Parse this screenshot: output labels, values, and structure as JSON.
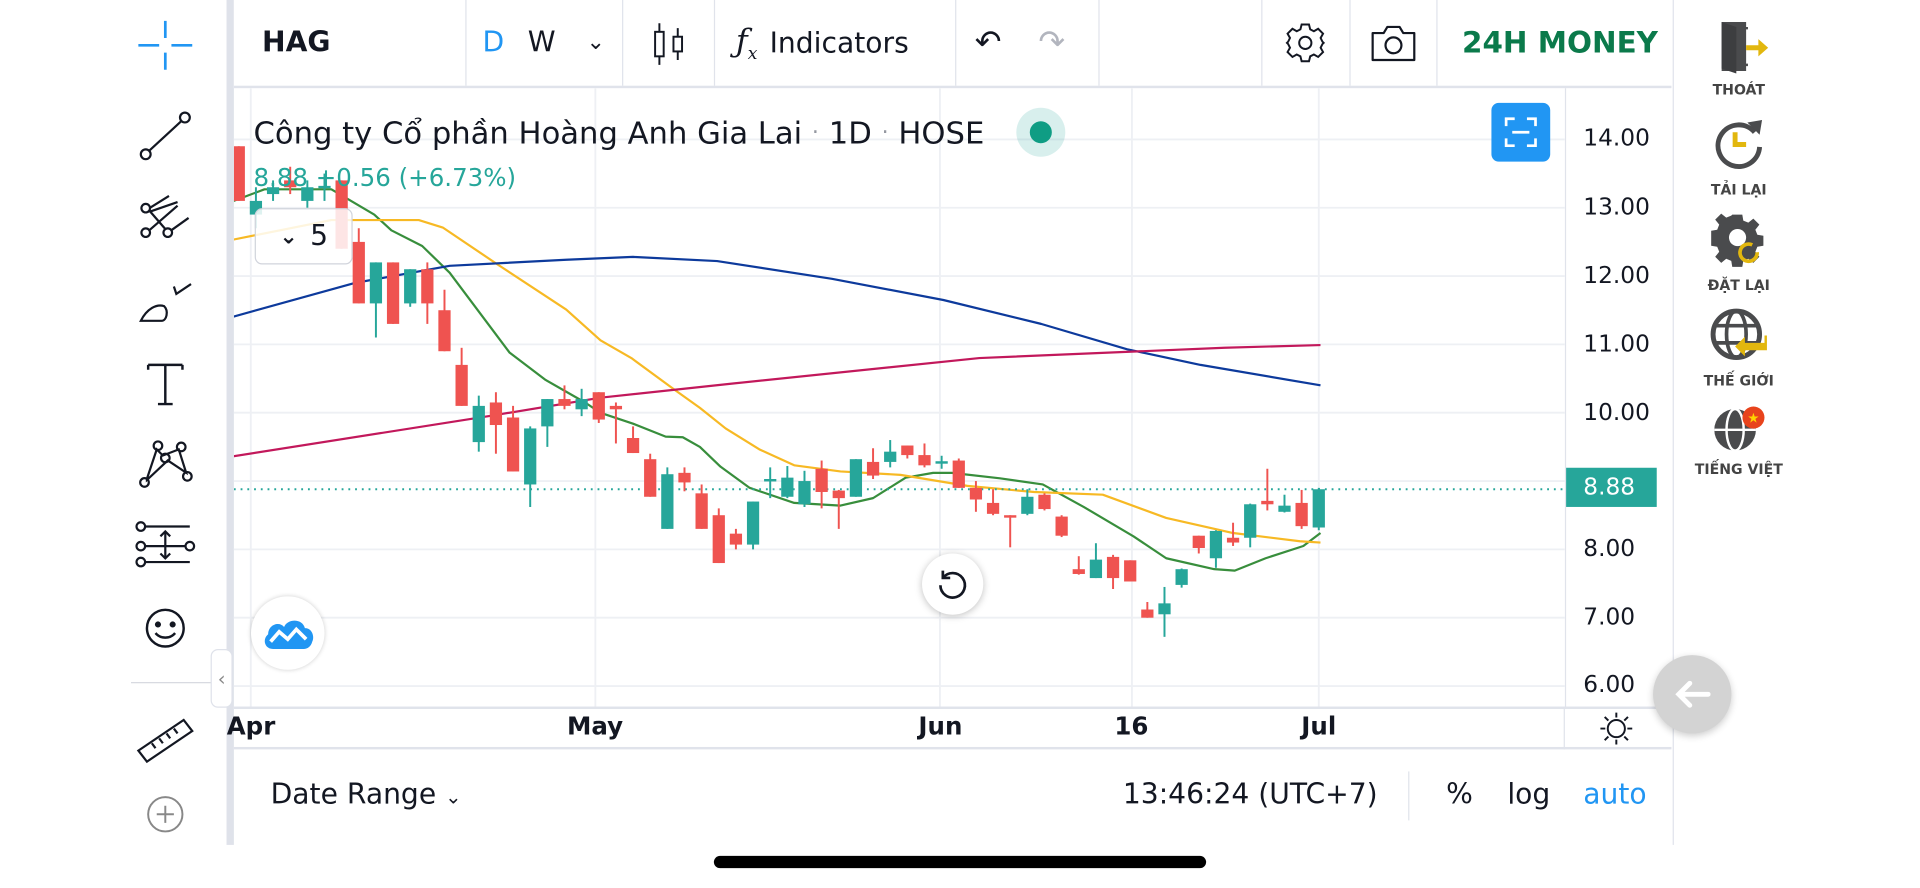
{
  "topbar": {
    "symbol": "HAG",
    "interval_d": "D",
    "interval_w": "W",
    "indicators_label": "Indicators",
    "brand": "24H MONEY"
  },
  "legend": {
    "title": "Công ty Cổ phần Hoàng Anh Gia Lai",
    "interval": "1D",
    "exchange": "HOSE",
    "sep": "·",
    "last_price": "8.88",
    "change": "+0.56",
    "change_pct": "(+6.73%)",
    "collapsed_count": "5"
  },
  "price_axis": {
    "labels": [
      "14.00",
      "13.00",
      "12.00",
      "11.00",
      "10.00",
      "8.00",
      "7.00",
      "6.00"
    ],
    "current_price_label": "8.88"
  },
  "bottom_bar": {
    "date_range": "Date Range",
    "time": "13:46:24 (UTC+7)",
    "percent": "%",
    "log": "log",
    "auto": "auto"
  },
  "right_panel": [
    {
      "label": "THOÁT",
      "icon": "exit-icon"
    },
    {
      "label": "TẢI LẠI",
      "icon": "reload-icon"
    },
    {
      "label": "ĐẶT LẠI",
      "icon": "reset-settings-icon"
    },
    {
      "label": "THẾ GIỚI",
      "icon": "world-icon"
    },
    {
      "label": "TIẾNG VIỆT",
      "icon": "vietnamese-language-icon"
    }
  ],
  "colors": {
    "up": "#26a69a",
    "down": "#ef5350",
    "accent": "#2196f3",
    "brand": "#0b7a4b",
    "ma_green": "#388e3c",
    "ma_yellow": "#f7b924",
    "ma_blue": "#0d3a9c",
    "ma_crimson": "#c2185b"
  },
  "chart_data": {
    "type": "candlestick",
    "title": "Công ty Cổ phần Hoàng Anh Gia Lai · 1D · HOSE",
    "ylim": [
      5.7,
      14.75
    ],
    "grid": true,
    "x_ticks": [
      {
        "label": "Apr",
        "index": 0.7
      },
      {
        "label": "May",
        "index": 20.8
      },
      {
        "label": "Jun",
        "index": 40.9
      },
      {
        "label": "16",
        "index": 52.1
      },
      {
        "label": "Jul",
        "index": 63
      }
    ],
    "ohlc": [
      [
        13.9,
        13.9,
        13.1,
        13.1
      ],
      [
        12.9,
        13.3,
        12.7,
        13.1
      ],
      [
        13.2,
        13.4,
        13.1,
        13.3
      ],
      [
        13.4,
        13.6,
        13.2,
        13.3
      ],
      [
        13.1,
        13.4,
        13.0,
        13.3
      ],
      [
        13.3,
        13.5,
        13.1,
        13.32
      ],
      [
        13.4,
        13.4,
        12.4,
        12.4
      ],
      [
        12.5,
        12.7,
        11.6,
        11.6
      ],
      [
        11.6,
        12.2,
        11.1,
        12.2
      ],
      [
        12.2,
        12.2,
        11.3,
        11.3
      ],
      [
        11.6,
        12.1,
        11.55,
        12.1
      ],
      [
        12.1,
        12.2,
        11.3,
        11.6
      ],
      [
        11.5,
        11.8,
        10.9,
        10.9
      ],
      [
        10.7,
        10.95,
        10.1,
        10.1
      ],
      [
        9.57,
        10.25,
        9.43,
        10.1
      ],
      [
        10.15,
        10.3,
        9.4,
        9.82
      ],
      [
        9.93,
        10.1,
        9.14,
        9.14
      ],
      [
        8.95,
        9.8,
        8.62,
        9.77
      ],
      [
        9.8,
        10.2,
        9.5,
        10.2
      ],
      [
        10.2,
        10.4,
        10.05,
        10.1
      ],
      [
        10.05,
        10.35,
        9.95,
        10.2
      ],
      [
        10.3,
        10.3,
        9.85,
        9.9
      ],
      [
        10.1,
        10.15,
        9.55,
        10.05
      ],
      [
        9.63,
        9.8,
        9.41,
        9.41
      ],
      [
        9.32,
        9.4,
        8.77,
        8.77
      ],
      [
        8.3,
        9.2,
        8.3,
        9.1
      ],
      [
        9.12,
        9.2,
        8.85,
        8.98
      ],
      [
        8.82,
        8.95,
        8.3,
        8.3
      ],
      [
        8.5,
        8.6,
        7.8,
        7.8
      ],
      [
        8.23,
        8.3,
        8.0,
        8.07
      ],
      [
        8.07,
        8.7,
        8.0,
        8.7
      ],
      [
        9.0,
        9.2,
        8.75,
        9.03
      ],
      [
        8.77,
        9.22,
        8.75,
        9.05
      ],
      [
        8.66,
        9.15,
        8.62,
        9.0
      ],
      [
        9.18,
        9.3,
        8.6,
        8.84
      ],
      [
        8.86,
        8.87,
        8.3,
        8.75
      ],
      [
        8.77,
        9.32,
        8.77,
        9.32
      ],
      [
        9.28,
        9.48,
        9.03,
        9.08
      ],
      [
        9.28,
        9.6,
        9.2,
        9.43
      ],
      [
        9.52,
        9.52,
        9.33,
        9.38
      ],
      [
        9.38,
        9.55,
        9.2,
        9.23
      ],
      [
        9.27,
        9.37,
        9.18,
        9.29
      ],
      [
        9.3,
        9.33,
        8.9,
        8.9
      ],
      [
        8.9,
        9.0,
        8.55,
        8.73
      ],
      [
        8.68,
        8.88,
        8.5,
        8.52
      ],
      [
        8.5,
        8.5,
        8.03,
        8.47
      ],
      [
        8.52,
        8.88,
        8.5,
        8.77
      ],
      [
        8.8,
        8.82,
        8.57,
        8.59
      ],
      [
        8.48,
        8.5,
        8.18,
        8.2
      ],
      [
        7.71,
        7.9,
        7.63,
        7.64
      ],
      [
        7.58,
        8.09,
        7.58,
        7.85
      ],
      [
        7.89,
        7.92,
        7.42,
        7.58
      ],
      [
        7.84,
        7.84,
        7.53,
        7.53
      ],
      [
        7.12,
        7.23,
        7.0,
        7.0
      ],
      [
        7.05,
        7.45,
        6.72,
        7.21
      ],
      [
        7.48,
        7.72,
        7.44,
        7.71
      ],
      [
        8.2,
        8.2,
        7.94,
        8.02
      ],
      [
        7.87,
        8.28,
        7.73,
        8.27
      ],
      [
        8.17,
        8.39,
        8.05,
        8.1
      ],
      [
        8.17,
        8.67,
        8.03,
        8.66
      ],
      [
        8.71,
        9.18,
        8.57,
        8.66
      ],
      [
        8.55,
        8.8,
        8.54,
        8.64
      ],
      [
        8.68,
        8.87,
        8.3,
        8.34
      ],
      [
        8.32,
        8.9,
        8.28,
        8.88
      ]
    ],
    "series": [
      {
        "name": "MA-green",
        "color": "#388e3c",
        "points": [
          [
            -0.4,
            13.09
          ],
          [
            1.5,
            13.27
          ],
          [
            5.4,
            13.27
          ],
          [
            7.9,
            12.9
          ],
          [
            8.9,
            12.67
          ],
          [
            10.7,
            12.44
          ],
          [
            12.3,
            12.05
          ],
          [
            15.8,
            10.88
          ],
          [
            17.9,
            10.48
          ],
          [
            20.2,
            10.15
          ],
          [
            21.1,
            10.0
          ],
          [
            23,
            9.84
          ],
          [
            24.9,
            9.65
          ],
          [
            25.9,
            9.64
          ],
          [
            26.9,
            9.5
          ],
          [
            28.1,
            9.21
          ],
          [
            29.8,
            8.9
          ],
          [
            32.4,
            8.68
          ],
          [
            35.1,
            8.64
          ],
          [
            37,
            8.75
          ],
          [
            38.9,
            9.05
          ],
          [
            40.5,
            9.12
          ],
          [
            41.6,
            9.12
          ],
          [
            44.4,
            9.04
          ],
          [
            46.9,
            8.95
          ],
          [
            49.3,
            8.62
          ],
          [
            52.2,
            8.19
          ],
          [
            54.1,
            7.87
          ],
          [
            56.9,
            7.71
          ],
          [
            58.1,
            7.69
          ],
          [
            59.9,
            7.87
          ],
          [
            62.1,
            8.05
          ],
          [
            63.1,
            8.24
          ]
        ]
      },
      {
        "name": "MA-yellow",
        "color": "#f7b924",
        "points": [
          [
            -0.4,
            12.53
          ],
          [
            5.4,
            12.82
          ],
          [
            10.5,
            12.82
          ],
          [
            11.9,
            12.71
          ],
          [
            15.1,
            12.17
          ],
          [
            19.1,
            11.51
          ],
          [
            21.1,
            11.06
          ],
          [
            22.9,
            10.8
          ],
          [
            25.4,
            10.34
          ],
          [
            26.9,
            10.07
          ],
          [
            28.4,
            9.77
          ],
          [
            30.4,
            9.46
          ],
          [
            32.4,
            9.23
          ],
          [
            35.1,
            9.14
          ],
          [
            38.6,
            9.09
          ],
          [
            42.5,
            8.93
          ],
          [
            46.4,
            8.84
          ],
          [
            50.4,
            8.8
          ],
          [
            54.1,
            8.46
          ],
          [
            58,
            8.24
          ],
          [
            61.9,
            8.12
          ],
          [
            63.1,
            8.1
          ]
        ]
      },
      {
        "name": "MA-blue",
        "color": "#0d3a9c",
        "points": [
          [
            -0.4,
            11.4
          ],
          [
            6.8,
            11.9
          ],
          [
            12.3,
            12.15
          ],
          [
            19.1,
            12.24
          ],
          [
            23,
            12.28
          ],
          [
            27.9,
            12.22
          ],
          [
            34.6,
            11.96
          ],
          [
            41.1,
            11.65
          ],
          [
            46.8,
            11.3
          ],
          [
            51.8,
            10.93
          ],
          [
            56.1,
            10.7
          ],
          [
            63.1,
            10.4
          ]
        ]
      },
      {
        "name": "MA-crimson",
        "color": "#c2185b",
        "points": [
          [
            -0.4,
            9.36
          ],
          [
            14.6,
            9.95
          ],
          [
            21.1,
            10.22
          ],
          [
            28.9,
            10.43
          ],
          [
            43.2,
            10.8
          ],
          [
            57.5,
            10.95
          ],
          [
            63.1,
            10.99
          ]
        ]
      }
    ],
    "last_price": 8.88
  }
}
